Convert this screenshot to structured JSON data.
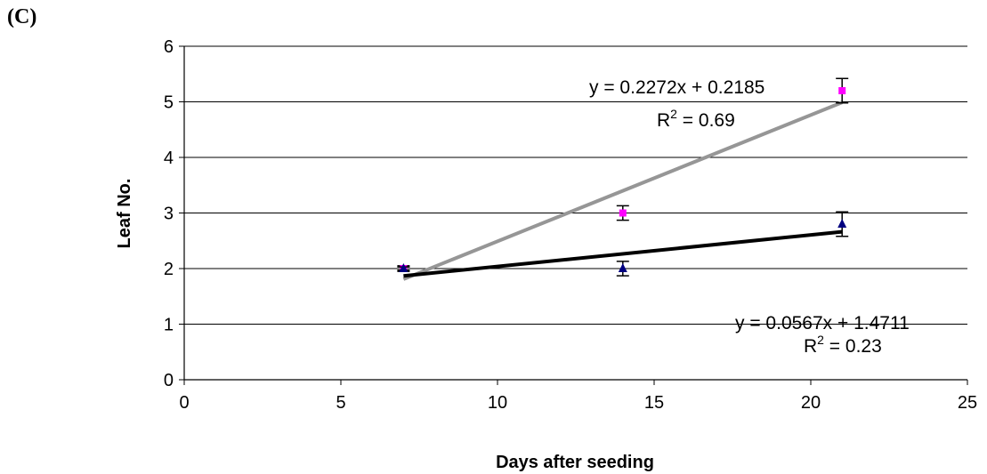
{
  "panel_label": "(C)",
  "chart_data": {
    "type": "scatter",
    "xlabel": "Days after seeding",
    "ylabel": "Leaf No.",
    "xlim": [
      0,
      25
    ],
    "ylim": [
      0,
      6
    ],
    "x_ticks": [
      0,
      5,
      10,
      15,
      20,
      25
    ],
    "y_ticks": [
      0,
      1,
      2,
      3,
      4,
      5,
      6
    ],
    "grid": "horizontal",
    "series": [
      {
        "color": "#ff00ff",
        "marker": "square",
        "points": [
          {
            "x": 7,
            "y": 2.0,
            "err": 0.05
          },
          {
            "x": 14,
            "y": 3.0,
            "err": 0.13
          },
          {
            "x": 21,
            "y": 5.2,
            "err": 0.22
          }
        ],
        "trendline": {
          "slope": 0.2272,
          "intercept": 0.2185,
          "color": "#969696",
          "x_range": [
            7,
            21
          ]
        },
        "equation": "y = 0.2272x + 0.2185",
        "r2_label": "R",
        "r2_sup": "2",
        "r2_value": " = 0.69"
      },
      {
        "color": "#000080",
        "marker": "triangle",
        "points": [
          {
            "x": 7,
            "y": 2.0,
            "err": 0.03
          },
          {
            "x": 14,
            "y": 2.0,
            "err": 0.13
          },
          {
            "x": 21,
            "y": 2.8,
            "err": 0.22
          }
        ],
        "trendline": {
          "slope": 0.0567,
          "intercept": 1.4711,
          "color": "#000000",
          "x_range": [
            7,
            21
          ]
        },
        "equation": "y = 0.0567x + 1.4711",
        "r2_label": "R",
        "r2_sup": "2",
        "r2_value": " = 0.23"
      }
    ]
  }
}
